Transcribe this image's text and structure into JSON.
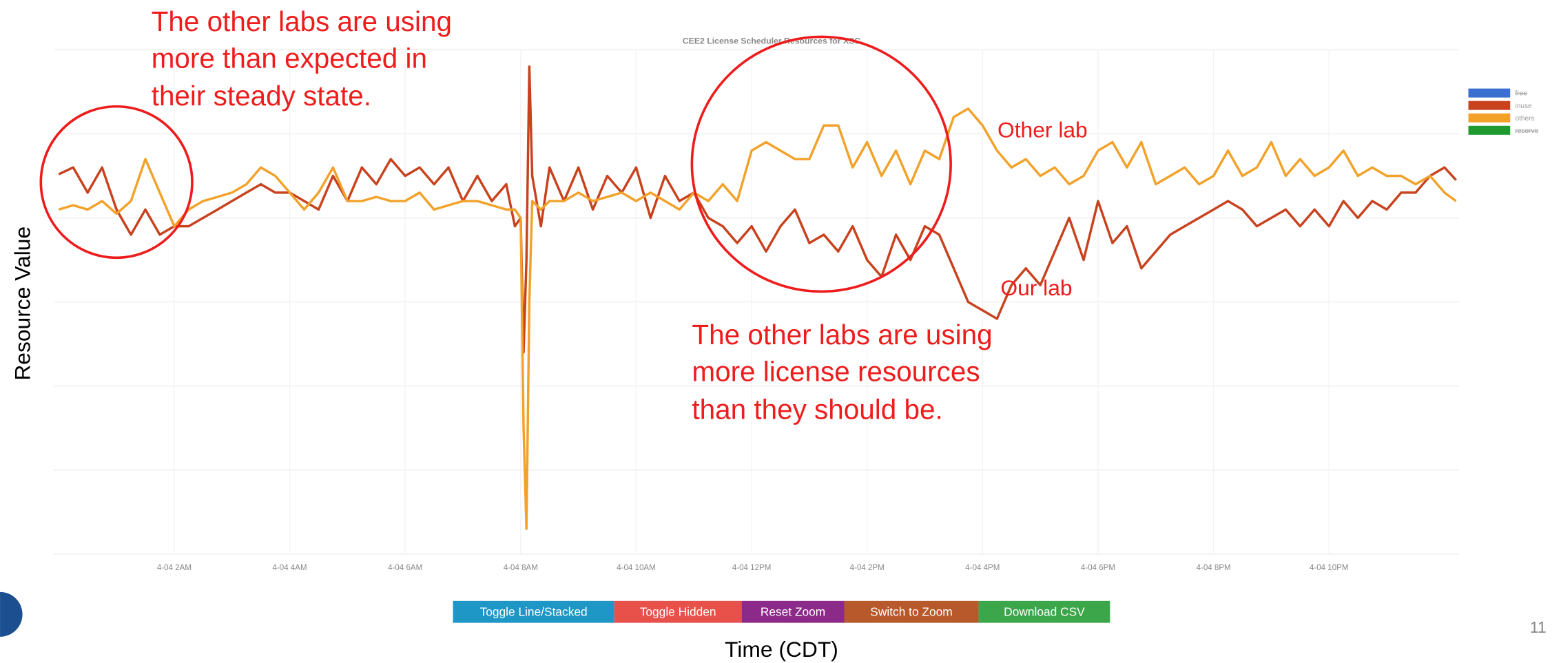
{
  "chart_data": {
    "type": "line",
    "title": "CEE2 License Scheduler Resources for XSC",
    "ylabel": "Resource Value",
    "xlabel": "Time (CDT)",
    "xlim": [
      0,
      24.25
    ],
    "ylim": [
      0,
      6
    ],
    "yticks": [
      0,
      1,
      2,
      3,
      4,
      5,
      6
    ],
    "xticks": [
      {
        "value": 2,
        "label": "4-04 2AM"
      },
      {
        "value": 4,
        "label": "4-04 4AM"
      },
      {
        "value": 6,
        "label": "4-04 6AM"
      },
      {
        "value": 8,
        "label": "4-04 8AM"
      },
      {
        "value": 10,
        "label": "4-04 10AM"
      },
      {
        "value": 12,
        "label": "4-04 12PM"
      },
      {
        "value": 14,
        "label": "4-04 2PM"
      },
      {
        "value": 16,
        "label": "4-04 4PM"
      },
      {
        "value": 18,
        "label": "4-04 6PM"
      },
      {
        "value": 20,
        "label": "4-04 8PM"
      },
      {
        "value": 22,
        "label": "4-04 10PM"
      }
    ],
    "grid": true,
    "legend": "upper right",
    "x": [
      0,
      0.25,
      0.5,
      0.75,
      1,
      1.25,
      1.5,
      1.75,
      2,
      2.25,
      2.5,
      2.75,
      3,
      3.25,
      3.5,
      3.75,
      4,
      4.25,
      4.5,
      4.75,
      5,
      5.25,
      5.5,
      5.75,
      6,
      6.25,
      6.5,
      6.75,
      7,
      7.25,
      7.5,
      7.75,
      7.9,
      8.0,
      8.05,
      8.1,
      8.15,
      8.2,
      8.35,
      8.5,
      8.75,
      9,
      9.25,
      9.5,
      9.75,
      10,
      10.25,
      10.5,
      10.75,
      11,
      11.25,
      11.5,
      11.75,
      12,
      12.25,
      12.5,
      12.75,
      13,
      13.25,
      13.5,
      13.75,
      14,
      14.25,
      14.5,
      14.75,
      15,
      15.25,
      15.5,
      15.75,
      16,
      16.25,
      16.5,
      16.75,
      17,
      17.25,
      17.5,
      17.75,
      18,
      18.25,
      18.5,
      18.75,
      19,
      19.25,
      19.5,
      19.75,
      20,
      20.25,
      20.5,
      20.75,
      21,
      21.25,
      21.5,
      21.75,
      22,
      22.25,
      22.5,
      22.75,
      23,
      23.25,
      23.5,
      23.75,
      24,
      24.2
    ],
    "series": [
      {
        "name": "inuse",
        "color": "#c8421e",
        "values": [
          4.52,
          4.6,
          4.3,
          4.6,
          4.1,
          3.8,
          4.1,
          3.8,
          3.9,
          3.9,
          4.0,
          4.1,
          4.2,
          4.3,
          4.4,
          4.3,
          4.3,
          4.2,
          4.1,
          4.5,
          4.2,
          4.6,
          4.4,
          4.7,
          4.5,
          4.6,
          4.4,
          4.6,
          4.2,
          4.5,
          4.2,
          4.4,
          3.9,
          4.0,
          2.4,
          3.5,
          5.8,
          4.5,
          3.9,
          4.6,
          4.2,
          4.6,
          4.1,
          4.5,
          4.3,
          4.6,
          4.0,
          4.5,
          4.2,
          4.3,
          4.0,
          3.9,
          3.7,
          3.9,
          3.6,
          3.9,
          4.1,
          3.7,
          3.8,
          3.6,
          3.9,
          3.5,
          3.3,
          3.8,
          3.5,
          3.9,
          3.8,
          3.4,
          3.0,
          2.9,
          2.8,
          3.2,
          3.4,
          3.2,
          3.6,
          4.0,
          3.5,
          4.2,
          3.7,
          3.9,
          3.4,
          3.6,
          3.8,
          3.9,
          4.0,
          4.1,
          4.2,
          4.1,
          3.9,
          4.0,
          4.1,
          3.9,
          4.1,
          3.9,
          4.2,
          4.0,
          4.2,
          4.1,
          4.3,
          4.3,
          4.5,
          4.6,
          4.45
        ]
      },
      {
        "name": "others",
        "color": "#f2a22a",
        "values": [
          4.1,
          4.15,
          4.1,
          4.2,
          4.05,
          4.2,
          4.7,
          4.3,
          3.9,
          4.1,
          4.2,
          4.25,
          4.3,
          4.4,
          4.6,
          4.5,
          4.3,
          4.1,
          4.3,
          4.6,
          4.2,
          4.2,
          4.25,
          4.2,
          4.2,
          4.3,
          4.1,
          4.15,
          4.2,
          4.2,
          4.15,
          4.1,
          4.1,
          4.0,
          1.5,
          0.3,
          3.0,
          4.2,
          4.1,
          4.2,
          4.2,
          4.3,
          4.2,
          4.25,
          4.3,
          4.2,
          4.3,
          4.2,
          4.1,
          4.3,
          4.2,
          4.4,
          4.2,
          4.8,
          4.9,
          4.8,
          4.7,
          4.7,
          5.1,
          5.1,
          4.6,
          4.9,
          4.5,
          4.8,
          4.4,
          4.8,
          4.7,
          5.2,
          5.3,
          5.1,
          4.8,
          4.6,
          4.7,
          4.5,
          4.6,
          4.4,
          4.5,
          4.8,
          4.9,
          4.6,
          4.9,
          4.4,
          4.5,
          4.6,
          4.4,
          4.5,
          4.8,
          4.5,
          4.6,
          4.9,
          4.5,
          4.7,
          4.5,
          4.6,
          4.8,
          4.5,
          4.6,
          4.5,
          4.5,
          4.4,
          4.5,
          4.3,
          4.2
        ]
      }
    ],
    "hidden_series": [
      {
        "name": "free",
        "color": "#3a6fd0"
      },
      {
        "name": "reserve",
        "color": "#1f9a2e"
      }
    ]
  },
  "annotations": {
    "steady_state": [
      "The other labs are using",
      "more than expected in",
      "their steady state."
    ],
    "should_be": [
      "The other labs are using",
      "more license resources",
      "than they should be."
    ],
    "other_lab": "Other lab",
    "our_lab": "Our lab"
  },
  "buttons": [
    {
      "label": "Toggle Line/Stacked",
      "color": "#1f97c6"
    },
    {
      "label": "Toggle Hidden",
      "color": "#e7514a"
    },
    {
      "label": "Reset Zoom",
      "color": "#8c2a8a"
    },
    {
      "label": "Switch to Zoom",
      "color": "#b8592b"
    },
    {
      "label": "Download CSV",
      "color": "#3ca64a"
    }
  ],
  "page_number": "11"
}
